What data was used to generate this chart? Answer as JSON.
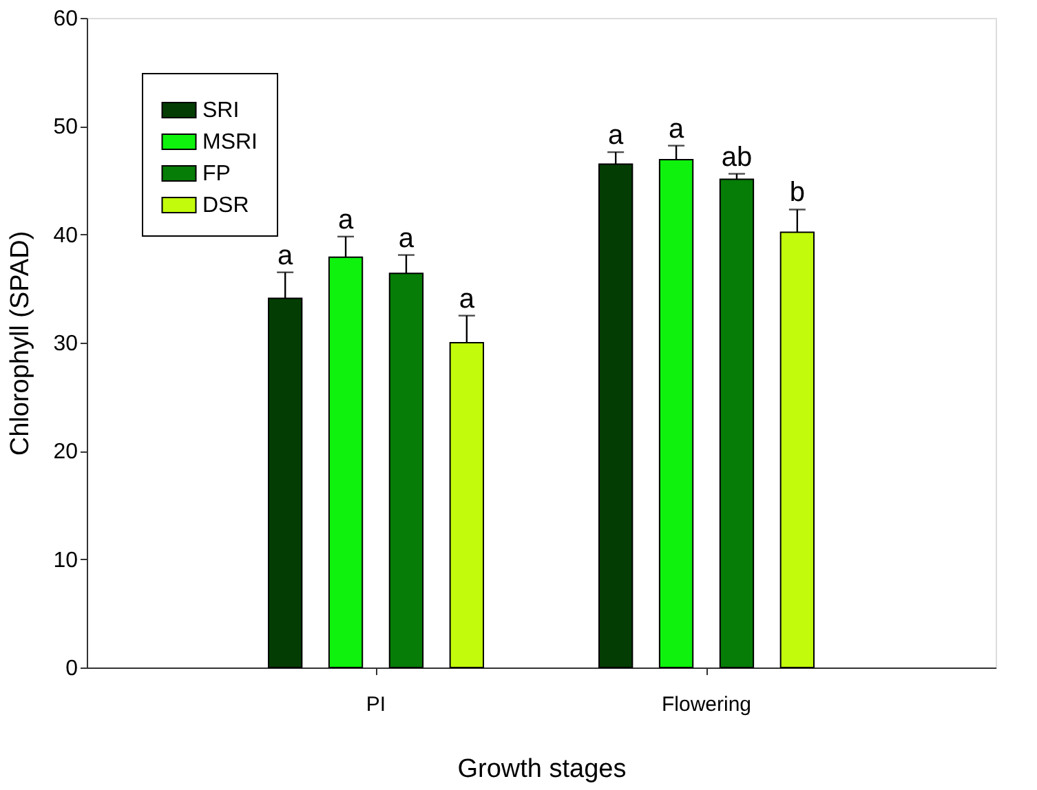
{
  "chart_data": {
    "type": "bar",
    "xlabel": "Growth stages",
    "ylabel": "Chlorophyll (SPAD)",
    "categories": [
      "PI",
      "Flowering"
    ],
    "series": [
      {
        "name": "SRI",
        "color": "#033d03",
        "values": [
          34.1,
          46.5
        ],
        "errors": [
          2.4,
          1.1
        ]
      },
      {
        "name": "MSRI",
        "color": "#0ef20e",
        "values": [
          37.9,
          46.9
        ],
        "errors": [
          1.9,
          1.3
        ]
      },
      {
        "name": "FP",
        "color": "#067d06",
        "values": [
          36.4,
          45.1
        ],
        "errors": [
          1.7,
          0.5
        ]
      },
      {
        "name": "DSR",
        "color": "#c2fc0c",
        "values": [
          30.0,
          40.2
        ],
        "errors": [
          2.5,
          2.1
        ]
      }
    ],
    "annotations": [
      "a",
      "a",
      "a",
      "a",
      "a",
      "a",
      "ab",
      "b"
    ],
    "ylim": [
      0,
      60
    ],
    "yticks": [
      0,
      10,
      20,
      30,
      40,
      50,
      60
    ],
    "legend": "top left",
    "grid": false
  }
}
